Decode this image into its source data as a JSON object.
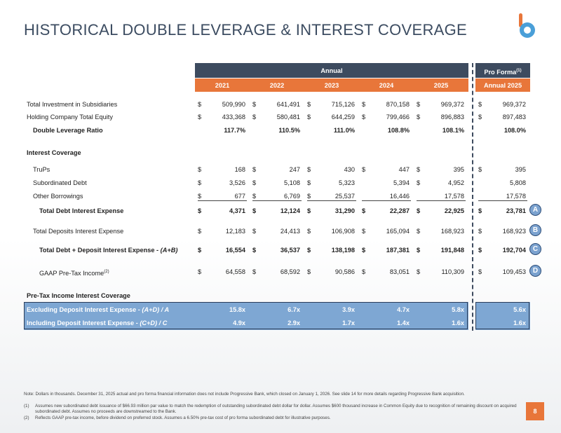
{
  "title": "HISTORICAL DOUBLE LEVERAGE & INTEREST COVERAGE",
  "logo_icon": "b-logo-icon",
  "colors": {
    "navy": "#3d4b5f",
    "orange": "#e8763a",
    "blue": "#7ea7d3"
  },
  "header": {
    "annual": "Annual",
    "pro_forma": "Pro Forma",
    "pro_forma_sup": "(1)",
    "years": [
      "2021",
      "2022",
      "2023",
      "2024",
      "2025"
    ],
    "pro_forma_year": "Annual 2025"
  },
  "rows": {
    "tis": {
      "label": "Total Investment in Subsidiaries",
      "v": [
        "509,990",
        "641,491",
        "715,126",
        "870,158",
        "969,372",
        "969,372"
      ]
    },
    "hce": {
      "label": "Holding Company Total Equity",
      "v": [
        "433,368",
        "580,481",
        "644,259",
        "799,466",
        "896,883",
        "897,483"
      ]
    },
    "dlr": {
      "label": "Double Leverage Ratio",
      "v": [
        "117.7%",
        "110.5%",
        "111.0%",
        "108.8%",
        "108.1%",
        "108.0%"
      ]
    },
    "ic": {
      "label": "Interest Coverage"
    },
    "trups": {
      "label": "TruPs",
      "v": [
        "168",
        "247",
        "430",
        "447",
        "395",
        "395"
      ]
    },
    "sub": {
      "label": "Subordinated Debt",
      "v": [
        "3,526",
        "5,108",
        "5,323",
        "5,394",
        "4,952",
        "5,808"
      ]
    },
    "oth": {
      "label": "Other Borrowings",
      "v": [
        "677",
        "6,769",
        "25,537",
        "16,446",
        "17,578",
        "17,578"
      ]
    },
    "tdie": {
      "label": "Total Debt Interest Expense",
      "v": [
        "4,371",
        "12,124",
        "31,290",
        "22,287",
        "22,925",
        "23,781"
      ],
      "marker": "A"
    },
    "tdepie": {
      "label": "Total Deposits Interest Expense",
      "v": [
        "12,183",
        "24,413",
        "106,908",
        "165,094",
        "168,923",
        "168,923"
      ],
      "marker": "B"
    },
    "tdd": {
      "label": "Total Debt + Deposit Interest Expense - ",
      "label_it": "(A+B)",
      "v": [
        "16,554",
        "36,537",
        "138,198",
        "187,381",
        "191,848",
        "192,704"
      ],
      "marker": "C"
    },
    "gaap": {
      "label": "GAAP Pre-Tax Income",
      "sup": "(2)",
      "v": [
        "64,558",
        "68,592",
        "90,586",
        "83,051",
        "110,309",
        "109,453"
      ],
      "marker": "D"
    },
    "ptic": {
      "label": "Pre-Tax Income Interest Coverage"
    },
    "excl": {
      "label": "Excluding Deposit Interest Expense - ",
      "label_it": "(A+D) / A",
      "v": [
        "15.8x",
        "6.7x",
        "3.9x",
        "4.7x",
        "5.8x",
        "5.6x"
      ]
    },
    "incl": {
      "label": "Including Deposit Interest Expense - ",
      "label_it": "(C+D) / C",
      "v": [
        "4.9x",
        "2.9x",
        "1.7x",
        "1.4x",
        "1.6x",
        "1.6x"
      ]
    }
  },
  "dollar": "$",
  "notes": {
    "main": "Note: Dollars in thousands. December 31, 2025 actual and pro forma financial information does not include Progressive Bank, which closed on January 1, 2026. See slide 14 for more details regarding Progressive Bank acquisition.",
    "n1_num": "(1)",
    "n1": "Assumes new subordinated debt issuance of $66.93 million par value to match the redemption of outstanding subordinated debt dollar for dollar. Assumes $600 thousand increase in Common Equity due to recognition of remaining discount on acquired subordinated debt. Assumes no proceeds are downstreamed to the Bank.",
    "n2_num": "(2)",
    "n2": "Reflects GAAP pre-tax income, before dividend on preferred stock. Assumes a 6.50% pre-tax cost of pro forma subordinated debt for illustrative purposes."
  },
  "page_number": "8"
}
